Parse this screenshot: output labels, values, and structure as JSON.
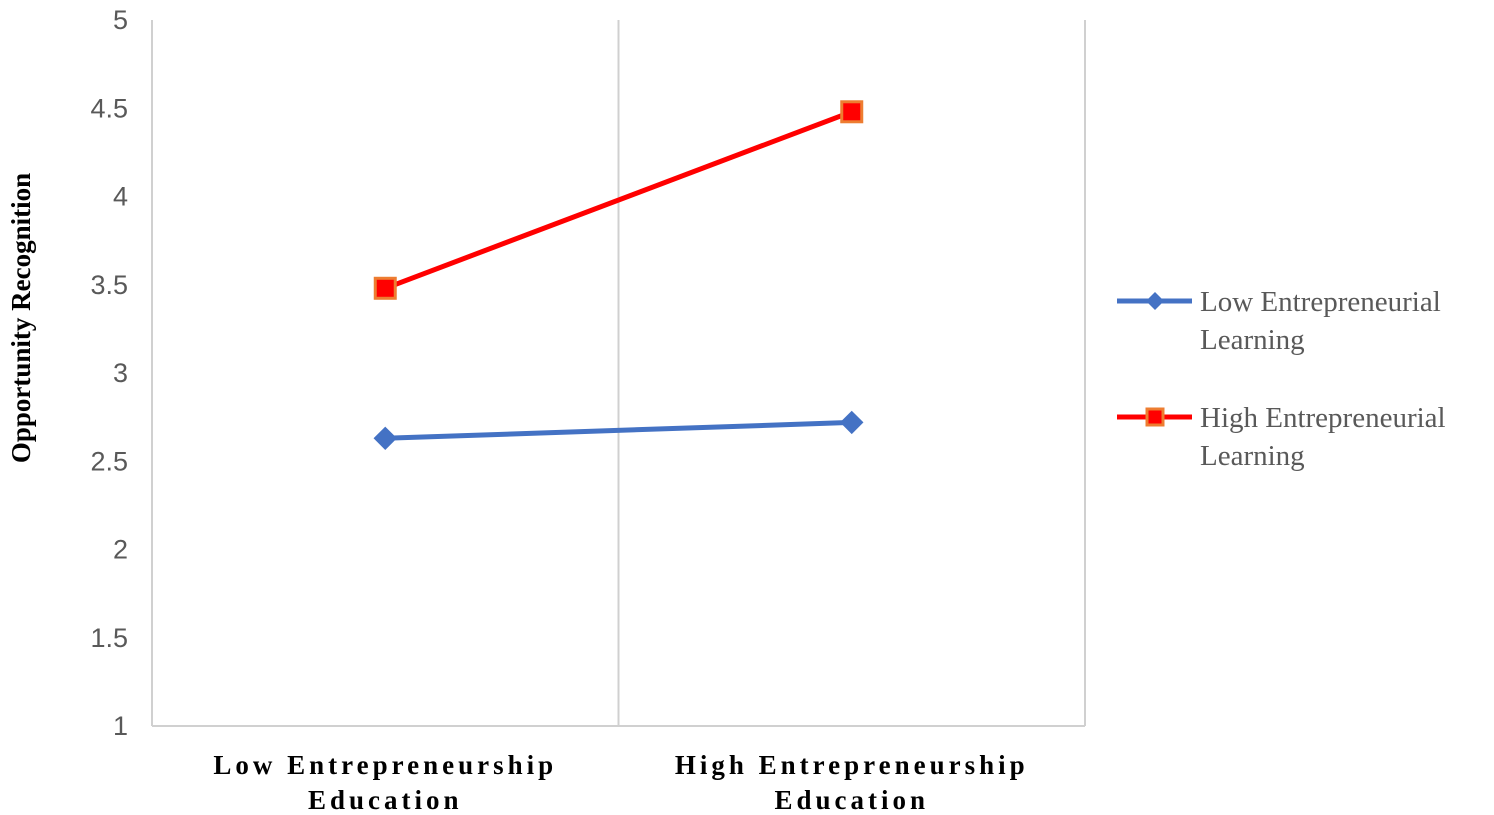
{
  "chart_data": {
    "type": "line",
    "title": "",
    "ylabel": "Opportunity Recognition",
    "xlabel": "",
    "categories": [
      [
        "Low Entrepreneurship",
        "Education"
      ],
      [
        "High Entrepreneurship",
        "Education"
      ]
    ],
    "ylim": [
      1,
      5
    ],
    "yticks": [
      "1",
      "1.5",
      "2",
      "2.5",
      "3",
      "3.5",
      "4",
      "4.5",
      "5"
    ],
    "grid": "vertical",
    "legend": "right",
    "series": [
      {
        "name": [
          "Low Entrepreneurial",
          "Learning"
        ],
        "values": [
          2.63,
          2.72
        ],
        "color": "#4472C4",
        "marker": "diamond"
      },
      {
        "name": [
          "High Entrepreneurial",
          "Learning"
        ],
        "values": [
          3.48,
          4.48
        ],
        "color": "#FF0000",
        "marker_fill": "#FF0000",
        "marker_edge": "#ED7D31",
        "marker": "square"
      }
    ]
  }
}
